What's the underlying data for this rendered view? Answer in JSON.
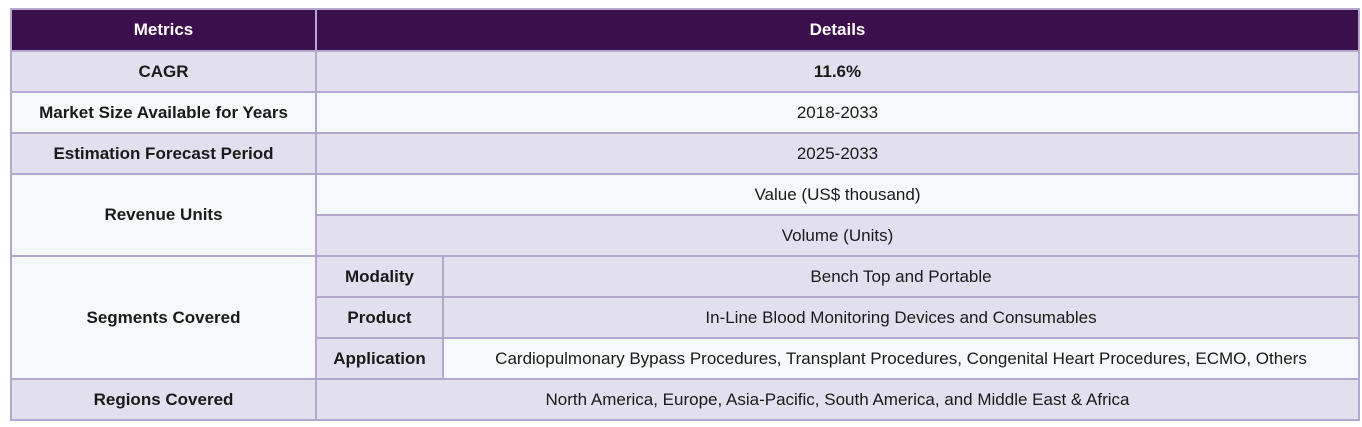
{
  "header": {
    "metrics_label": "Metrics",
    "details_label": "Details"
  },
  "rows": {
    "cagr": {
      "metric": "CAGR",
      "detail": "11.6%"
    },
    "market_size": {
      "metric": "Market Size Available for Years",
      "detail": "2018-2033"
    },
    "forecast": {
      "metric": "Estimation Forecast Period",
      "detail": "2025-2033"
    },
    "revenue": {
      "metric": "Revenue Units",
      "value_detail": "Value (US$ thousand)",
      "volume_detail": "Volume (Units)"
    },
    "segments": {
      "metric": "Segments Covered",
      "items": [
        {
          "label": "Modality",
          "detail": "Bench Top and Portable"
        },
        {
          "label": "Product",
          "detail": "In-Line Blood Monitoring Devices and Consumables"
        },
        {
          "label": "Application",
          "detail": "Cardiopulmonary Bypass Procedures, Transplant Procedures, Congenital Heart Procedures, ECMO, Others"
        }
      ]
    },
    "regions": {
      "metric": "Regions Covered",
      "detail": "North America, Europe, Asia-Pacific, South America, and Middle East & Africa"
    }
  },
  "colors": {
    "header_bg": "#3a0f4b",
    "row_lavender": "#e2dfee",
    "row_white": "#f6f9fc",
    "border": "#b3a9cf"
  }
}
